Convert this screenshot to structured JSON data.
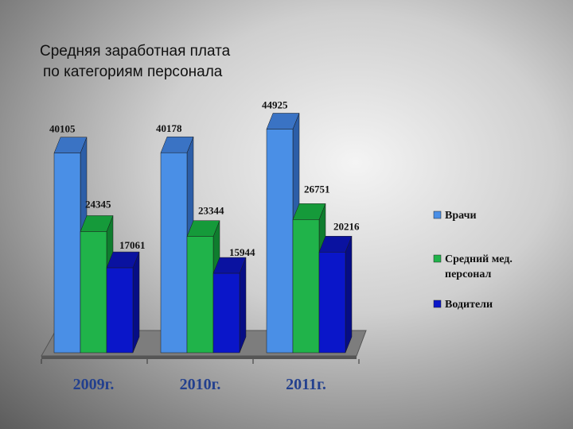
{
  "title_lines": [
    "Средняя заработная плата",
    "по категориям персонала"
  ],
  "chart_data": {
    "type": "bar",
    "title": "Средняя заработная плата по категориям персонала",
    "categories": [
      "2009г.",
      "2010г.",
      "2011г."
    ],
    "series": [
      {
        "name": "Врачи",
        "values": [
          40105,
          40178,
          44925
        ],
        "color": "#4a8fe6",
        "top_color": "#3a73c4",
        "side_color": "#2c5ea8"
      },
      {
        "name": "Средний мед. персонал",
        "values": [
          24345,
          23344,
          26751
        ],
        "color": "#20b34a",
        "top_color": "#159a3a",
        "side_color": "#0f7d2e"
      },
      {
        "name": "Водители",
        "values": [
          17061,
          15944,
          20216
        ],
        "color": "#0a16c9",
        "top_color": "#0a12a0",
        "side_color": "#060d85"
      }
    ],
    "legend": {
      "position": "right",
      "entries": [
        "Врачи",
        "Средний мед. персонал",
        "Водители"
      ]
    },
    "ylim": [
      0,
      45000
    ],
    "grid": false,
    "three_d": true
  }
}
